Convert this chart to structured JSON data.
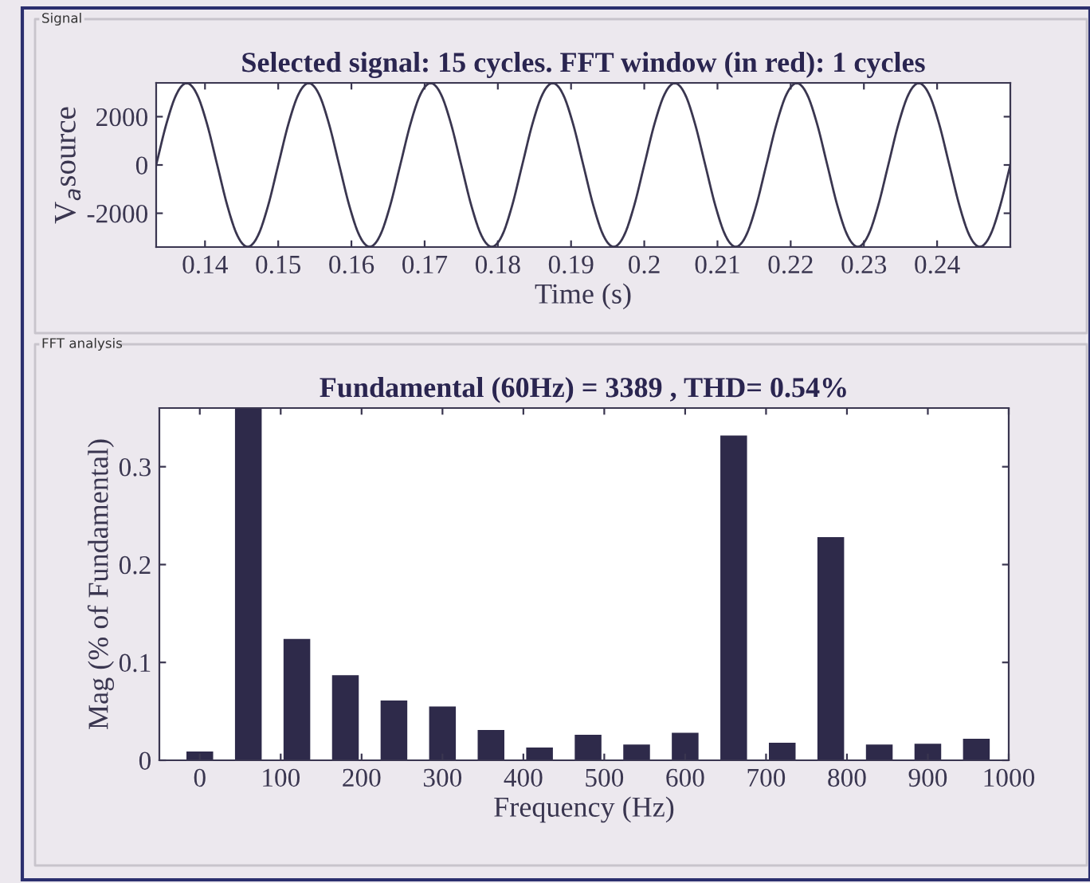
{
  "chart_data": [
    {
      "type": "line",
      "title": "Selected signal: 15 cycles. FFT window (in red): 1 cycles",
      "xlabel": "Time (s)",
      "ylabel": "V$_{a}$source",
      "annotations": [
        "Signal"
      ],
      "x": [
        0.13333,
        0.13472,
        0.13611,
        0.1375,
        0.13889,
        0.14028,
        0.14167,
        0.14306,
        0.14444,
        0.14583,
        0.14722,
        0.14861,
        0.15,
        0.15139,
        0.15278,
        0.15417,
        0.15556,
        0.15694,
        0.15833,
        0.15972,
        0.16111,
        0.1625,
        0.16389,
        0.16528,
        0.16667,
        0.16806,
        0.16944,
        0.17083,
        0.17222,
        0.17361,
        0.175,
        0.17639,
        0.17778,
        0.17917,
        0.18056,
        0.18194,
        0.18333,
        0.18472,
        0.18611,
        0.1875,
        0.18889,
        0.19028,
        0.19167,
        0.19306,
        0.19444,
        0.19583,
        0.19722,
        0.19861,
        0.2,
        0.20139,
        0.20278,
        0.20417,
        0.20556,
        0.20694,
        0.20833,
        0.20972,
        0.21111,
        0.2125,
        0.21389,
        0.21528,
        0.21667,
        0.21806,
        0.21944,
        0.22083,
        0.22222,
        0.22361,
        0.225,
        0.22639,
        0.22778,
        0.22917,
        0.23056,
        0.23194,
        0.23333,
        0.23472,
        0.23611,
        0.2375,
        0.23889,
        0.24028,
        0.24167,
        0.24306,
        0.24444,
        0.24583,
        0.24722,
        0.24861,
        0.25
      ],
      "series": [
        {
          "color": "#3a3650",
          "values": [
            0,
            1695,
            2935,
            3389,
            2935,
            1695,
            0,
            -1695,
            -2935,
            -3389,
            -2935,
            -1695,
            0,
            1695,
            2935,
            3389,
            2935,
            1695,
            0,
            -1695,
            -2935,
            -3389,
            -2935,
            -1695,
            0,
            1695,
            2935,
            3389,
            2935,
            1695,
            0,
            -1695,
            -2935,
            -3389,
            -2935,
            -1695,
            0,
            1695,
            2935,
            3389,
            2935,
            1695,
            0,
            -1695,
            -2935,
            -3389,
            -2935,
            -1695,
            0,
            1695,
            2935,
            3389,
            2935,
            1695,
            0,
            -1695,
            -2935,
            -3389,
            -2935,
            -1695,
            0,
            1695,
            2935,
            3389,
            2935,
            1695,
            0,
            -1695,
            -2935,
            -3389,
            -2935,
            -1695,
            0,
            1695,
            2935,
            3389,
            2935,
            1695,
            0,
            -1695,
            -2935,
            -3389,
            -2935,
            -1695,
            0
          ]
        }
      ],
      "xlim": [
        0.13333,
        0.25
      ],
      "xticks": [
        0.14,
        0.15,
        0.16,
        0.17,
        0.18,
        0.19,
        0.2,
        0.21,
        0.22,
        0.23,
        0.24
      ],
      "ylim": [
        -3400,
        3400
      ],
      "yticks": [
        -2000,
        0,
        2000
      ],
      "grid": false,
      "legend": false
    },
    {
      "type": "bar",
      "title": "Fundamental (60Hz) = 3389 , THD= 0.54%",
      "xlabel": "Frequency (Hz)",
      "ylabel": "Mag (% of Fundamental)",
      "annotations": [
        "FFT analysis"
      ],
      "x": [
        0,
        60,
        120,
        180,
        240,
        300,
        360,
        420,
        480,
        540,
        600,
        660,
        720,
        780,
        840,
        900,
        960
      ],
      "series": [
        {
          "color": "#2e2a4a",
          "values": [
            0.009,
            0.36,
            0.124,
            0.087,
            0.061,
            0.055,
            0.031,
            0.013,
            0.026,
            0.016,
            0.028,
            0.332,
            0.018,
            0.228,
            0.016,
            0.017,
            0.022
          ]
        }
      ],
      "xlim": [
        -50,
        1000
      ],
      "xticks": [
        0,
        100,
        200,
        300,
        400,
        500,
        600,
        700,
        800,
        900,
        1000
      ],
      "ylim": [
        0,
        0.36
      ],
      "yticks": [
        0,
        0.1,
        0.2,
        0.3
      ],
      "grid": false,
      "legend": false
    }
  ]
}
